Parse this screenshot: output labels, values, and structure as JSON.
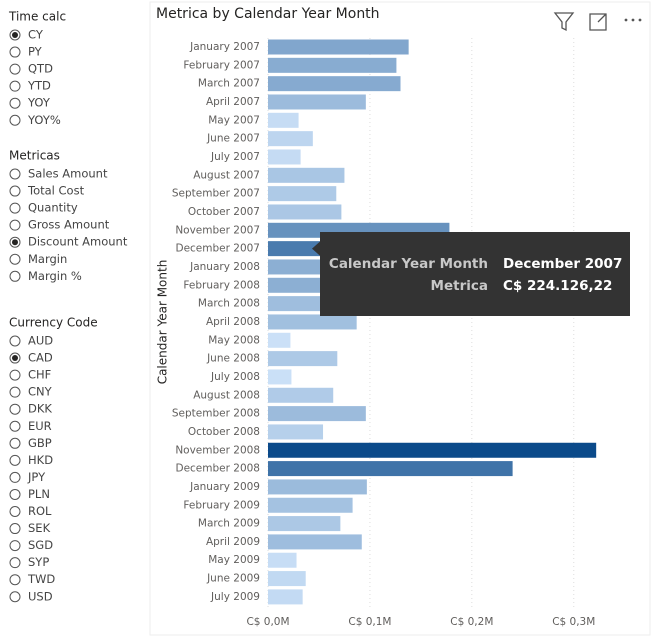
{
  "slicers": [
    {
      "title": "Time calc",
      "options": [
        "CY",
        "PY",
        "QTD",
        "YTD",
        "YOY",
        "YOY%"
      ],
      "selected": "CY"
    },
    {
      "title": "Metricas",
      "options": [
        "Sales Amount",
        "Total Cost",
        "Quantity",
        "Gross Amount",
        "Discount Amount",
        "Margin",
        "Margin %"
      ],
      "selected": "Discount Amount"
    },
    {
      "title": "Currency Code",
      "options": [
        "AUD",
        "CAD",
        "CHF",
        "CNY",
        "DKK",
        "EUR",
        "GBP",
        "HKD",
        "JPY",
        "PLN",
        "ROL",
        "SEK",
        "SGD",
        "SYP",
        "TWD",
        "USD"
      ],
      "selected": "CAD"
    }
  ],
  "chart_data": {
    "type": "bar",
    "orientation": "horizontal",
    "title": "Metrica by Calendar Year Month",
    "y_label": "Calendar Year Month",
    "categories": [
      "January 2007",
      "February 2007",
      "March 2007",
      "April 2007",
      "May 2007",
      "June 2007",
      "July 2007",
      "August 2007",
      "September 2007",
      "October 2007",
      "November 2007",
      "December 2007",
      "January 2008",
      "February 2008",
      "March 2008",
      "April 2008",
      "May 2008",
      "June 2008",
      "July 2008",
      "August 2008",
      "September 2008",
      "October 2008",
      "November 2008",
      "December 2008",
      "January 2009",
      "February 2009",
      "March 2009",
      "April 2009",
      "May 2009",
      "June 2009",
      "July 2009"
    ],
    "values": [
      0.138,
      0.126,
      0.13,
      0.096,
      0.03,
      0.044,
      0.032,
      0.075,
      0.067,
      0.072,
      0.178,
      0.22412622,
      0.12,
      0.12,
      0.09,
      0.087,
      0.022,
      0.068,
      0.023,
      0.064,
      0.096,
      0.054,
      0.322,
      0.24,
      0.097,
      0.083,
      0.071,
      0.092,
      0.028,
      0.037,
      0.034
    ],
    "color_scale": [
      "#d9ebff",
      "#0b4a8a"
    ],
    "xlim": [
      0,
      0.365
    ],
    "xticks": [
      {
        "value": 0,
        "label": "C$ 0,0M"
      },
      {
        "value": 0.1,
        "label": "C$ 0,1M"
      },
      {
        "value": 0.2,
        "label": "C$ 0,2M"
      },
      {
        "value": 0.3,
        "label": "C$ 0,3M"
      }
    ],
    "grid": true,
    "tooltip": {
      "category": 11,
      "rows": [
        [
          "Calendar Year Month",
          "December 2007"
        ],
        [
          "Metrica",
          "C$ 224.126,22"
        ]
      ]
    }
  }
}
